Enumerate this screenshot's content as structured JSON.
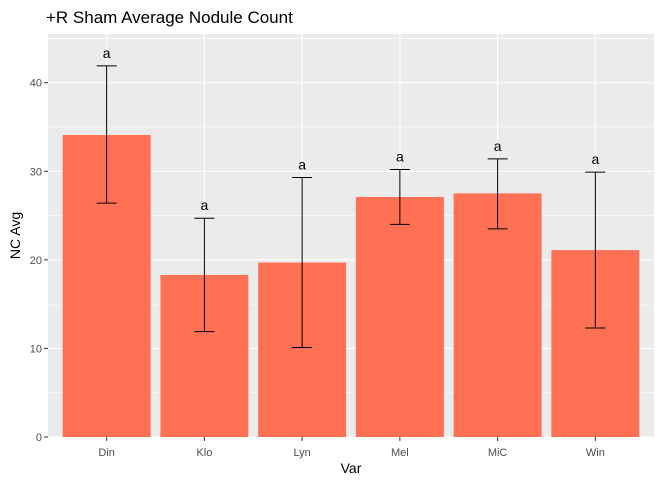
{
  "chart_data": {
    "type": "bar",
    "title": "+R Sham Average Nodule Count",
    "xlabel": "Var",
    "ylabel": "NC Avg",
    "categories": [
      "Din",
      "Klo",
      "Lyn",
      "Mel",
      "MiC",
      "Win"
    ],
    "values": [
      34.1,
      18.3,
      19.7,
      27.1,
      27.5,
      21.1
    ],
    "error_low": [
      26.4,
      11.9,
      10.1,
      24.0,
      23.5,
      12.3
    ],
    "error_high": [
      41.9,
      24.7,
      29.3,
      30.2,
      31.4,
      29.9
    ],
    "significance_labels": [
      "a",
      "a",
      "a",
      "a",
      "a",
      "a"
    ],
    "ylim": [
      0,
      45.5
    ],
    "yticks": [
      0,
      10,
      20,
      30,
      40
    ],
    "grid": true,
    "bar_color": "#ff7055",
    "panel_background": "#ebebeb",
    "grid_color": "#ffffff"
  }
}
